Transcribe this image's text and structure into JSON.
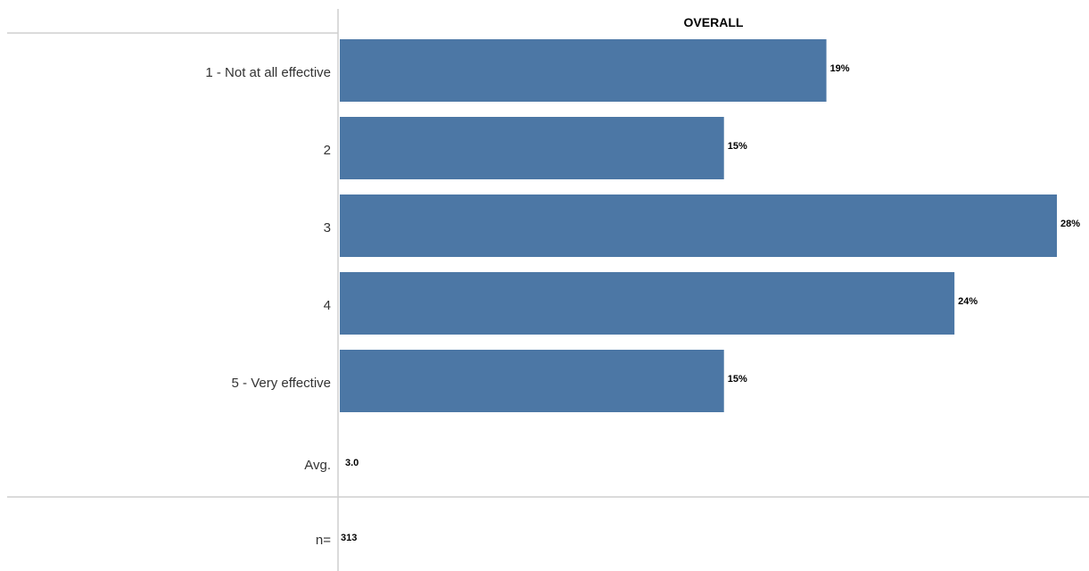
{
  "chart_data": {
    "type": "bar",
    "orientation": "horizontal",
    "title": "OVERALL",
    "categories": [
      "1 - Not at all effective",
      "2",
      "3",
      "4",
      "5 - Very effective"
    ],
    "values": [
      19,
      15,
      28,
      24,
      15
    ],
    "value_labels": [
      "19%",
      "15%",
      "28%",
      "24%",
      "15%"
    ],
    "unit": "%",
    "xlim": [
      0,
      28
    ],
    "grid": false,
    "bar_color": "#4c77a5",
    "summary": {
      "avg_label": "Avg.",
      "avg_value": "3.0",
      "n_label": "n=",
      "n_value": "313"
    }
  }
}
